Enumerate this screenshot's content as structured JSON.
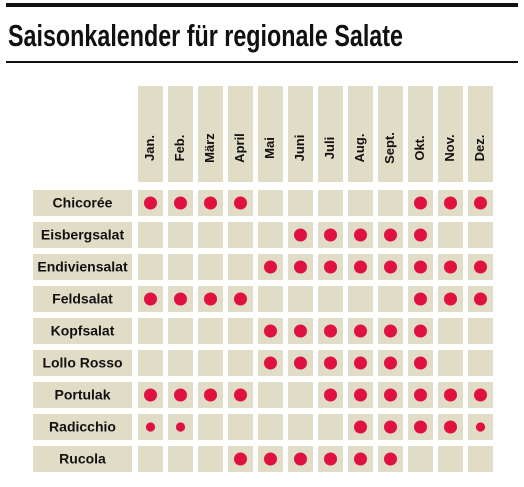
{
  "chart_data": {
    "type": "dotmatrix",
    "title": "Saisonkalender für regionale Salate",
    "categories": [
      "Jan.",
      "Feb.",
      "März",
      "April",
      "Mai",
      "Juni",
      "Juli",
      "Aug.",
      "Sept.",
      "Okt.",
      "Nov.",
      "Dez."
    ],
    "color": "#e0103f",
    "cell_color": "#e0dcc6",
    "series": [
      {
        "name": "Chicorée",
        "values": [
          1,
          1,
          1,
          1,
          0,
          0,
          0,
          0,
          0,
          1,
          1,
          1
        ]
      },
      {
        "name": "Eisbergsalat",
        "values": [
          0,
          0,
          0,
          0,
          0,
          1,
          1,
          1,
          1,
          1,
          0,
          0
        ]
      },
      {
        "name": "Endiviensalat",
        "values": [
          0,
          0,
          0,
          0,
          1,
          1,
          1,
          1,
          1,
          1,
          1,
          1
        ]
      },
      {
        "name": "Feldsalat",
        "values": [
          1,
          1,
          1,
          1,
          0,
          0,
          0,
          0,
          0,
          1,
          1,
          1
        ]
      },
      {
        "name": "Kopfsalat",
        "values": [
          0,
          0,
          0,
          0,
          1,
          1,
          1,
          1,
          1,
          1,
          0,
          0
        ]
      },
      {
        "name": "Lollo  Rosso",
        "values": [
          0,
          0,
          0,
          0,
          1,
          1,
          1,
          1,
          1,
          1,
          0,
          0
        ]
      },
      {
        "name": "Portulak",
        "values": [
          1,
          1,
          1,
          1,
          0,
          0,
          1,
          1,
          1,
          1,
          1,
          1
        ]
      },
      {
        "name": "Radicchio",
        "values": [
          0.5,
          0.5,
          0,
          0,
          0,
          0,
          0,
          1,
          1,
          1,
          1,
          0.5
        ]
      },
      {
        "name": "Rucola",
        "values": [
          0,
          0,
          0,
          1,
          1,
          1,
          1,
          1,
          1,
          0,
          0,
          0
        ]
      }
    ]
  }
}
